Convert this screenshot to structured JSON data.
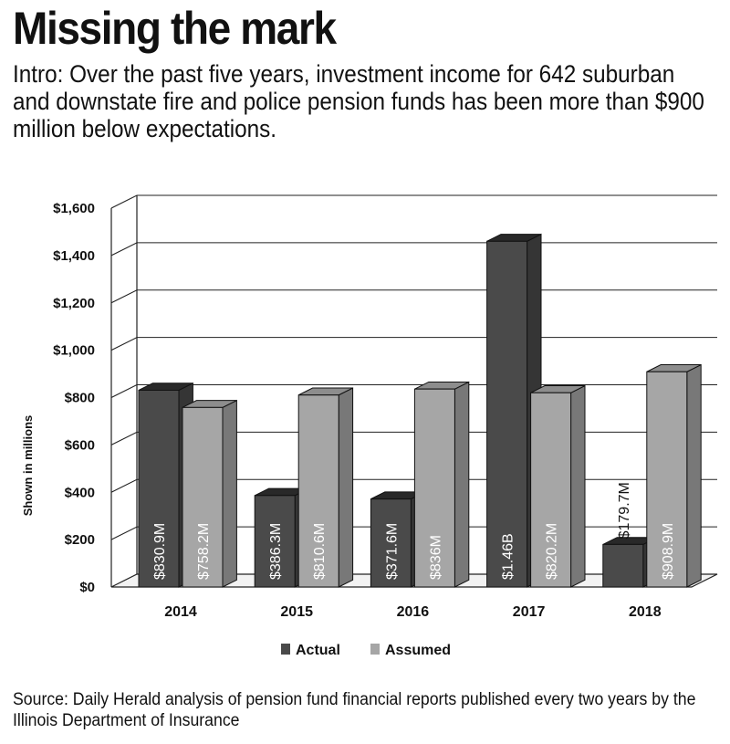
{
  "headline": "Missing the mark",
  "intro": "Intro: Over the past five years, investment income for 642 suburban and downstate fire and police pension funds has been more than $900 million below expectations.",
  "source": "Source: Daily Herald analysis of pension fund financial reports published every two years by the Illinois Department of Insurance",
  "colors": {
    "actual": "#4a4a4a",
    "assumed": "#a6a6a6",
    "grid": "#222222"
  },
  "chart_data": {
    "type": "bar",
    "categories": [
      "2014",
      "2015",
      "2016",
      "2017",
      "2018"
    ],
    "series": [
      {
        "name": "Actual",
        "values": [
          830.9,
          386.3,
          371.6,
          1460,
          179.7
        ],
        "labels": [
          "$830.9M",
          "$386.3M",
          "$371.6M",
          "$1.46B",
          "$179.7M"
        ]
      },
      {
        "name": "Assumed",
        "values": [
          758.2,
          810.6,
          836,
          820.2,
          908.9
        ],
        "labels": [
          "$758.2M",
          "$810.6M",
          "$836M",
          "$820.2M",
          "$908.9M"
        ]
      }
    ],
    "ylabel": "Shown in millions",
    "ylim": [
      0,
      1600
    ],
    "yticks": [
      "$0",
      "$200",
      "$400",
      "$600",
      "$800",
      "$1,000",
      "$1,200",
      "$1,400",
      "$1,600"
    ],
    "grid": true,
    "legend": "bottom",
    "style": "3d"
  }
}
